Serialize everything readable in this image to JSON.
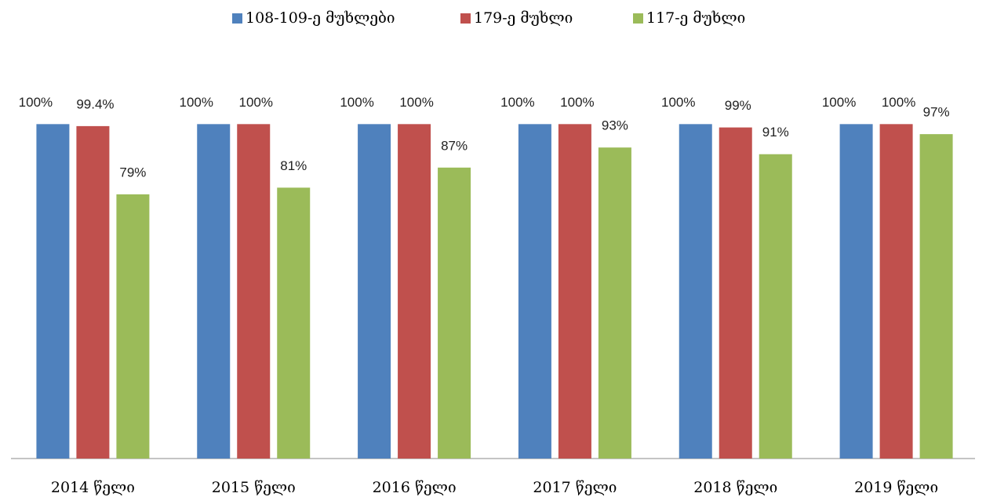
{
  "chart_data": {
    "type": "bar",
    "categories": [
      "2014 წელი",
      "2015 წელი",
      "2016 წელი",
      "2017 წელი",
      "2018 წელი",
      "2019 წელი"
    ],
    "series": [
      {
        "name": "108-109-ე მუხლები",
        "color": "#4f81bd",
        "values": [
          100,
          100,
          100,
          100,
          100,
          100
        ],
        "value_labels": [
          "100%",
          "100%",
          "100%",
          "100%",
          "100%",
          "100%"
        ]
      },
      {
        "name": "179-ე მუხლი",
        "color": "#c0504d",
        "values": [
          99.4,
          100,
          100,
          100,
          99,
          100
        ],
        "value_labels": [
          "99.4%",
          "100%",
          "100%",
          "100%",
          "99%",
          "100%"
        ]
      },
      {
        "name": "117-ე მუხლი",
        "color": "#9bbb59",
        "values": [
          79,
          81,
          87,
          93,
          91,
          97
        ],
        "value_labels": [
          "79%",
          "81%",
          "87%",
          "93%",
          "91%",
          "97%"
        ]
      }
    ],
    "ylim": [
      0,
      120
    ],
    "legend": "top"
  }
}
